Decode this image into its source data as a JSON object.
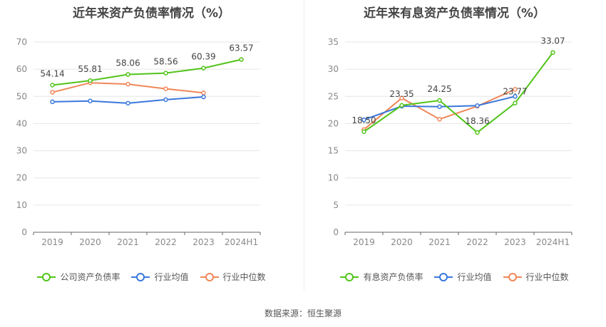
{
  "source": "数据来源：恒生聚源",
  "charts": [
    {
      "title": "近年来资产负债率情况（%）",
      "legend": [
        "公司资产负债率",
        "行业均值",
        "行业中位数"
      ]
    },
    {
      "title": "近年来有息资产负债率情况（%）",
      "legend": [
        "有息资产负债率",
        "行业均值",
        "行业中位数"
      ]
    }
  ],
  "chart_data": [
    {
      "type": "line",
      "title": "近年来资产负债率情况（%）",
      "categories": [
        "2019",
        "2020",
        "2021",
        "2022",
        "2023",
        "2024H1"
      ],
      "ylim": [
        0,
        70
      ],
      "yticks": [
        0,
        10,
        20,
        30,
        40,
        50,
        60,
        70
      ],
      "grid": true,
      "legend_position": "bottom",
      "series": [
        {
          "name": "公司资产负债率",
          "color": "#52c41a",
          "values": [
            54.14,
            55.81,
            58.06,
            58.56,
            60.39,
            63.57
          ],
          "labels": [
            "54.14",
            "55.81",
            "58.06",
            "58.56",
            "60.39",
            "63.57"
          ]
        },
        {
          "name": "行业均值",
          "color": "#3a78dc",
          "values": [
            48.0,
            48.3,
            47.5,
            48.8,
            49.8,
            null
          ]
        },
        {
          "name": "行业中位数",
          "color": "#f08759",
          "values": [
            51.5,
            55.0,
            54.5,
            52.8,
            51.3,
            null
          ]
        }
      ]
    },
    {
      "type": "line",
      "title": "近年来有息资产负债率情况（%）",
      "categories": [
        "2019",
        "2020",
        "2021",
        "2022",
        "2023",
        "2024H1"
      ],
      "ylim": [
        0,
        35
      ],
      "yticks": [
        0,
        5,
        10,
        15,
        20,
        25,
        30,
        35
      ],
      "grid": true,
      "legend_position": "bottom",
      "series": [
        {
          "name": "有息资产负债率",
          "color": "#52c41a",
          "values": [
            18.5,
            23.35,
            24.25,
            18.36,
            23.77,
            33.07
          ],
          "labels": [
            "18.50",
            "23.35",
            "24.25",
            "18.36",
            "23.77",
            "33.07"
          ]
        },
        {
          "name": "行业均值",
          "color": "#3a78dc",
          "values": [
            20.7,
            23.2,
            23.1,
            23.3,
            25.0,
            null
          ]
        },
        {
          "name": "行业中位数",
          "color": "#f08759",
          "values": [
            18.9,
            24.7,
            20.8,
            23.2,
            26.3,
            null
          ]
        }
      ]
    }
  ]
}
